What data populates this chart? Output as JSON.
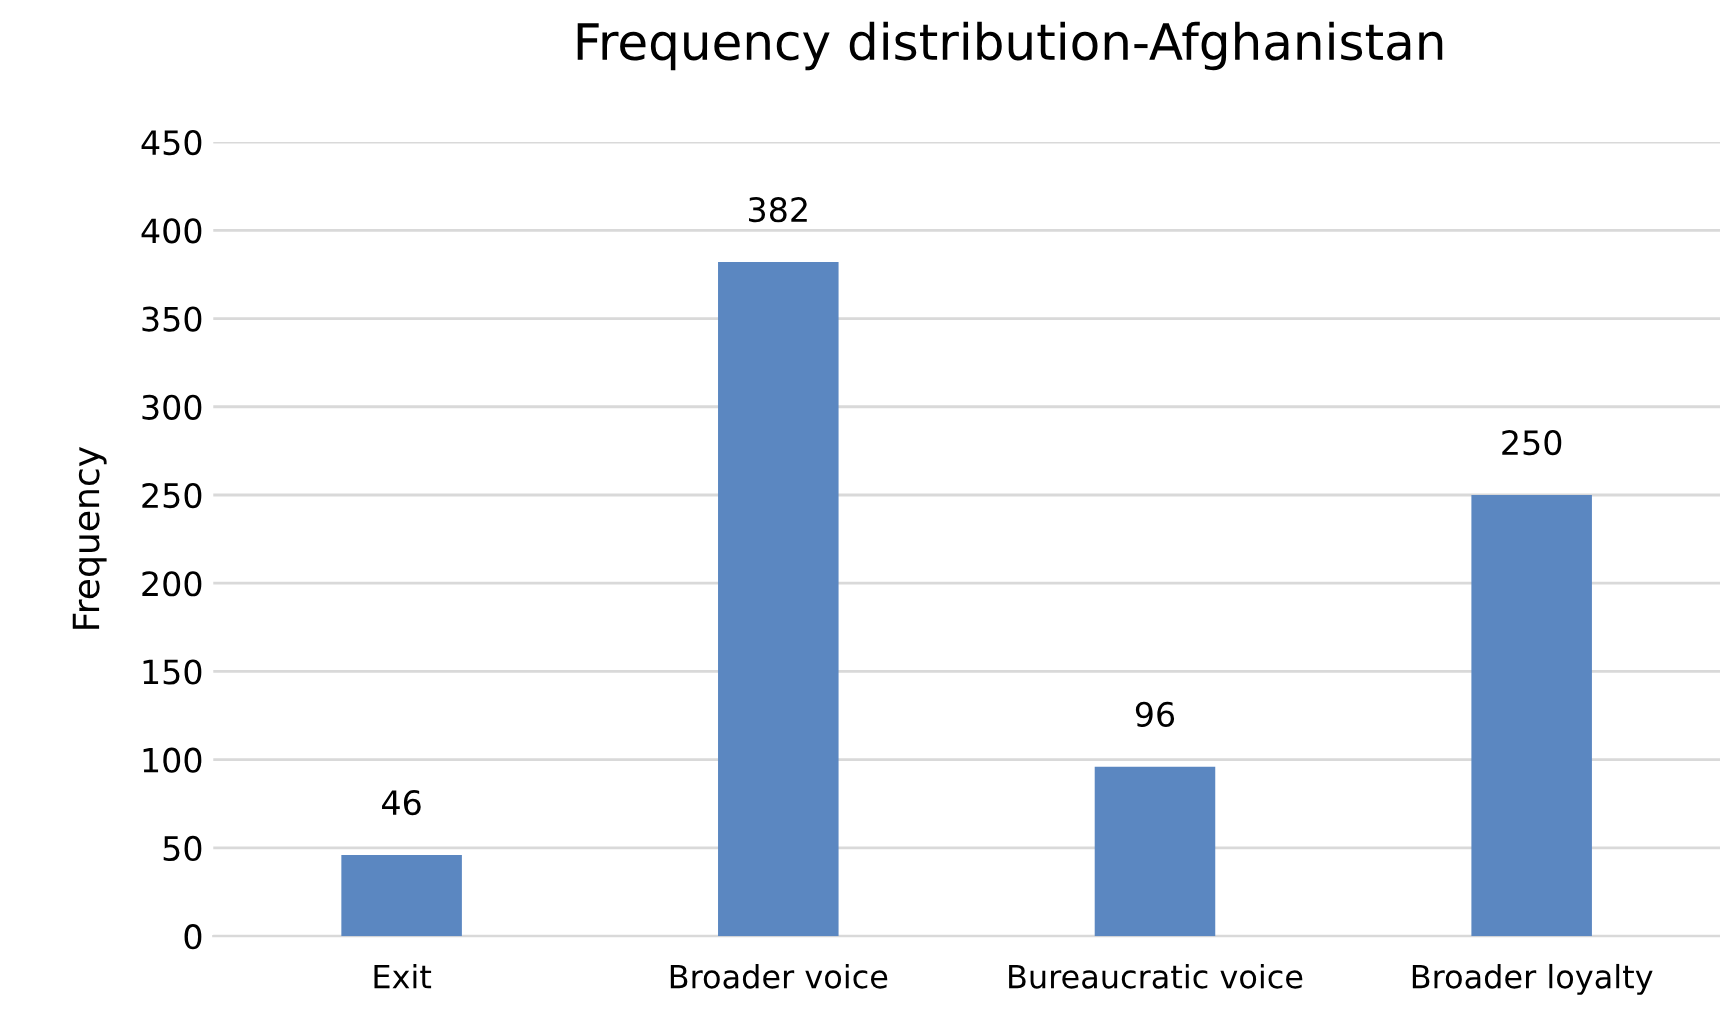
{
  "chart_data": {
    "type": "bar",
    "title": "Frequency distribution-Afghanistan",
    "ylabel": "Frequency",
    "categories": [
      "Exit",
      "Broader voice",
      "Bureaucratic voice",
      "Broader loyalty"
    ],
    "values": [
      46,
      382,
      96,
      250
    ],
    "color": "#5b87c1",
    "ylim": [
      0,
      450
    ],
    "yticks": [
      0,
      50,
      100,
      150,
      200,
      250,
      300,
      350,
      400,
      450
    ],
    "grid": "y",
    "data_labels": true
  }
}
